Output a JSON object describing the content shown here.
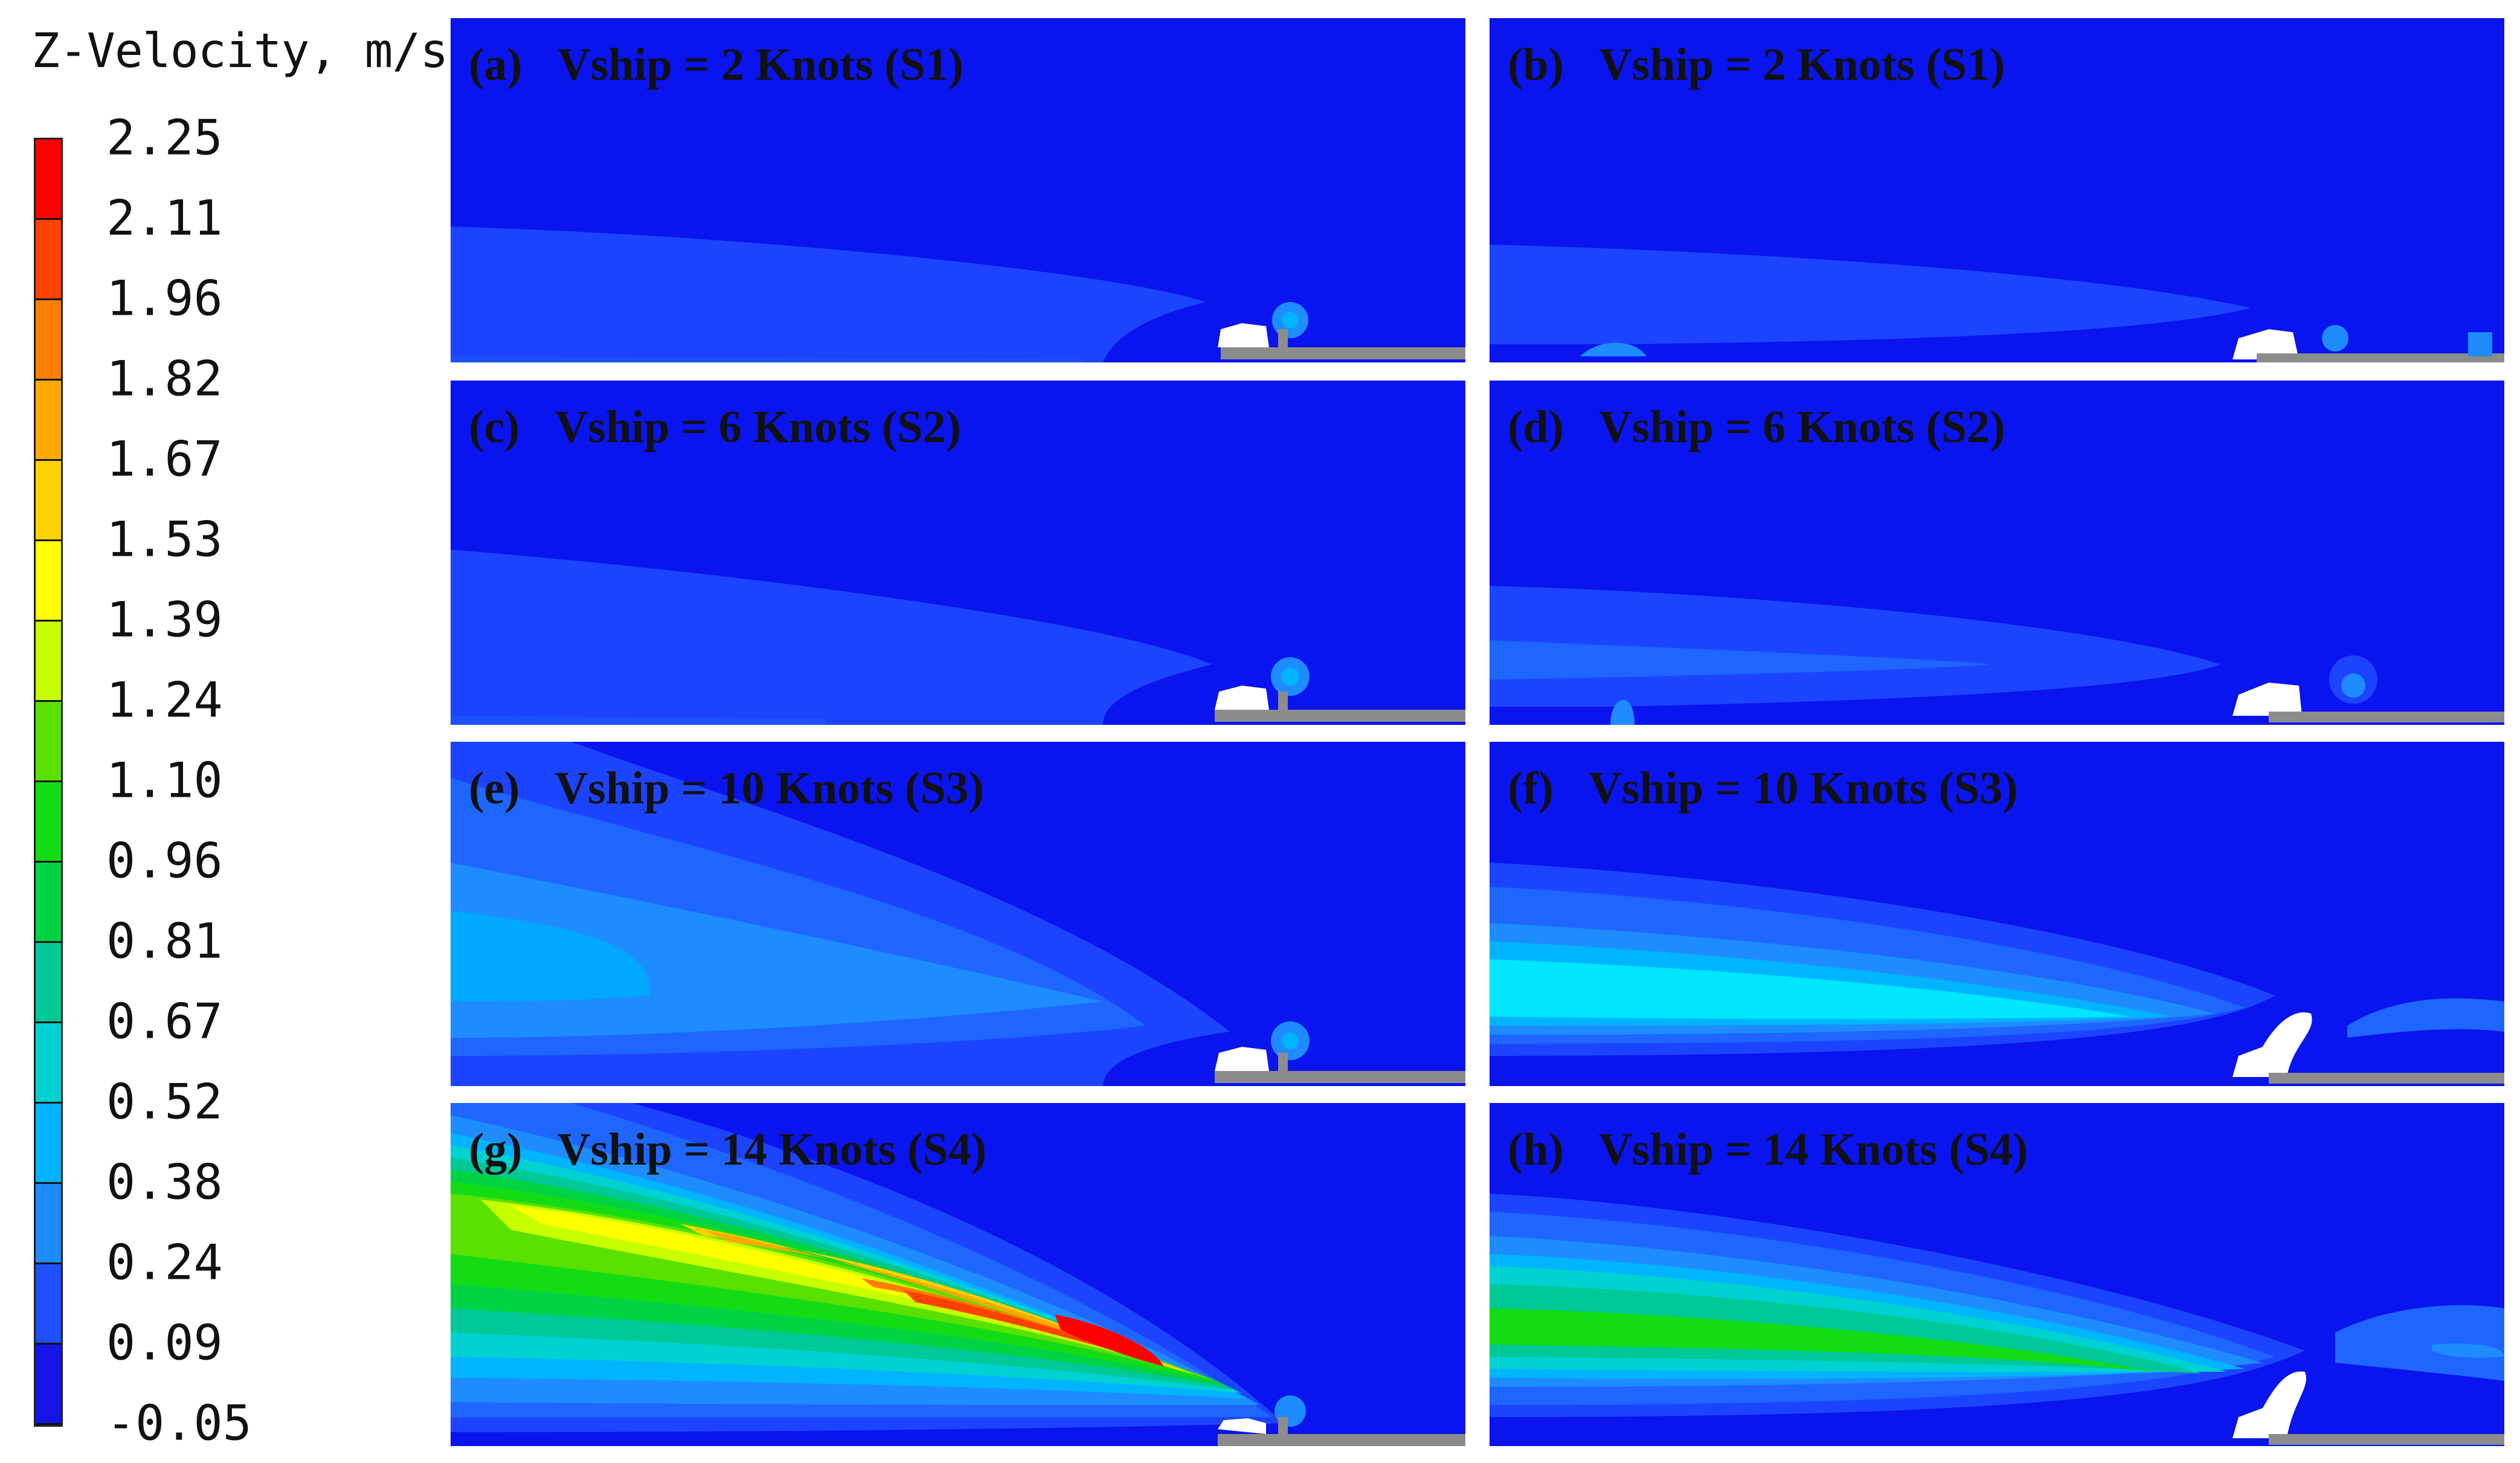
{
  "legend": {
    "title": "Z-Velocity, m/s",
    "ticks": [
      "2.25",
      "2.11",
      "1.96",
      "1.82",
      "1.67",
      "1.53",
      "1.39",
      "1.24",
      "1.10",
      "0.96",
      "0.81",
      "0.67",
      "0.52",
      "0.38",
      "0.24",
      "0.09",
      "-0.05"
    ],
    "colors": [
      "#ff0000",
      "#ff4200",
      "#ff7e00",
      "#ffaa00",
      "#ffd200",
      "#ffff00",
      "#c8ff00",
      "#5ae100",
      "#14dc14",
      "#00d246",
      "#00c896",
      "#00d2d2",
      "#00b4ff",
      "#1e8cff",
      "#1e50ff",
      "#1414e6"
    ]
  },
  "panels": [
    {
      "id": "a",
      "letter": "(a)",
      "caption": "Vship = 2 Knots (S1)"
    },
    {
      "id": "b",
      "letter": "(b)",
      "caption": "Vship = 2 Knots (S1)"
    },
    {
      "id": "c",
      "letter": "(c)",
      "caption": "Vship = 6 Knots (S2)"
    },
    {
      "id": "d",
      "letter": "(d)",
      "caption": "Vship = 6 Knots (S2)"
    },
    {
      "id": "e",
      "letter": "(e)",
      "caption": "Vship = 10 Knots (S3)"
    },
    {
      "id": "f",
      "letter": "(f)",
      "caption": "Vship = 10 Knots (S3)"
    },
    {
      "id": "g",
      "letter": "(g)",
      "caption": "Vship = 14 Knots (S4)"
    },
    {
      "id": "h",
      "letter": "(h)",
      "caption": "Vship = 14 Knots (S4)"
    }
  ]
}
